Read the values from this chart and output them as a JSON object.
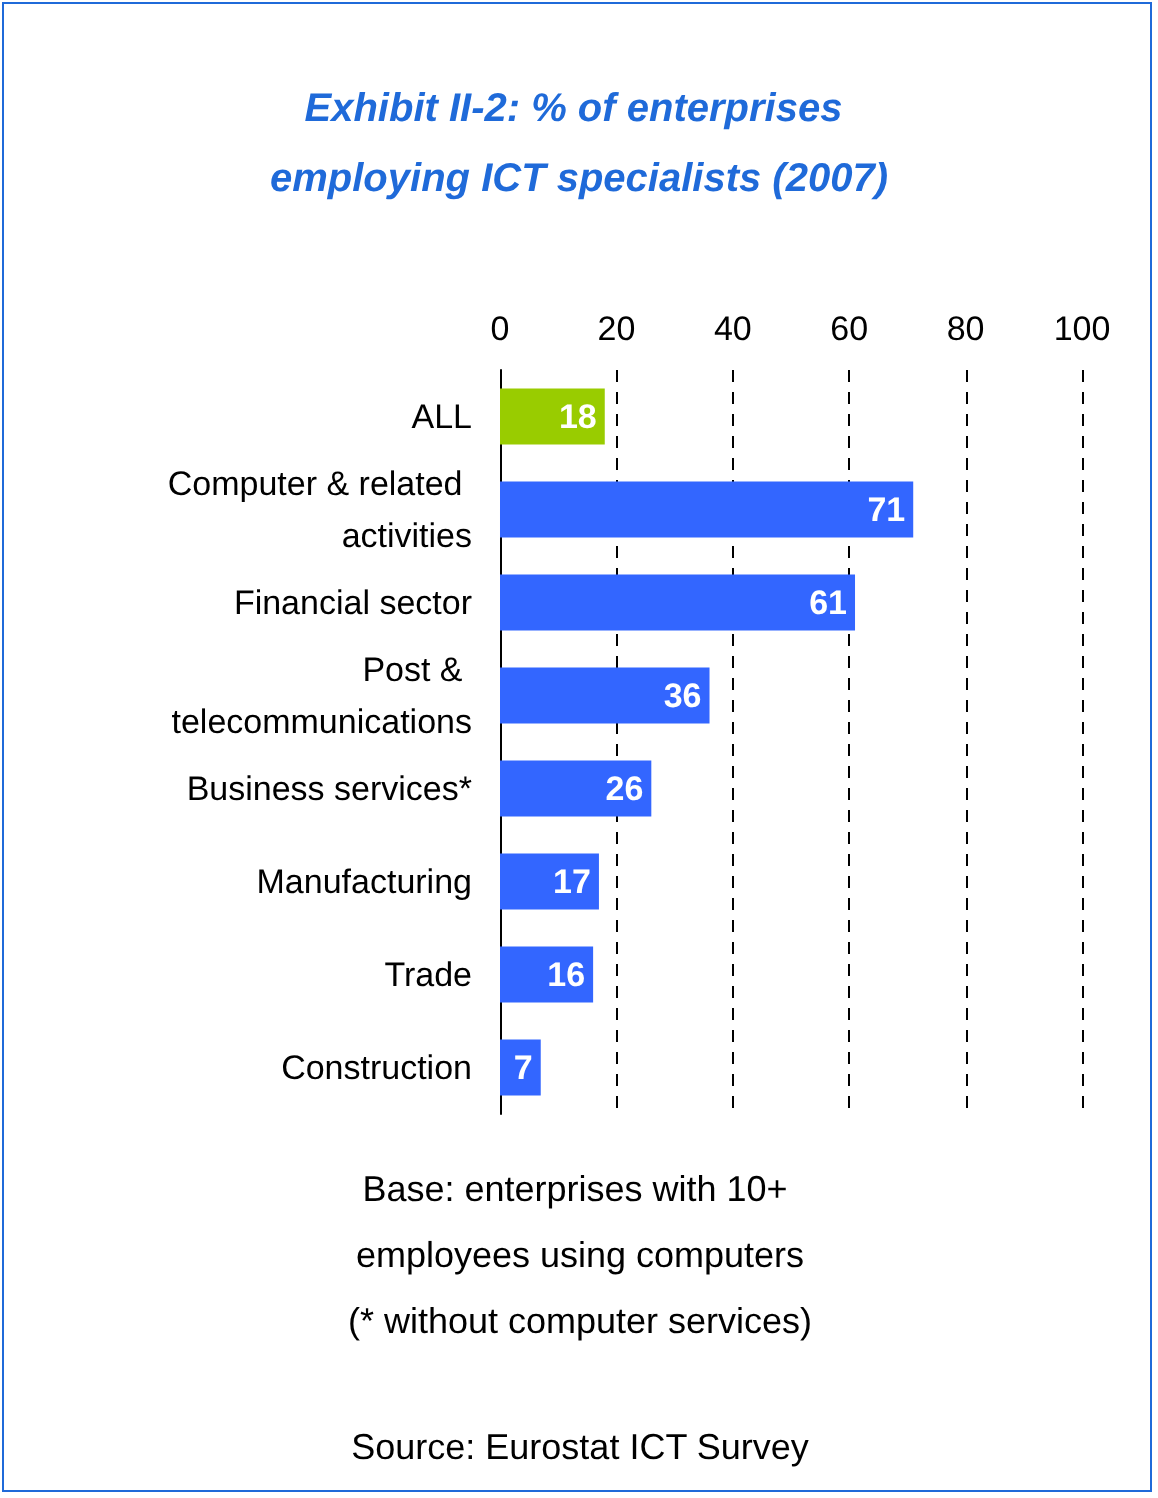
{
  "chart_data": {
    "type": "bar",
    "orientation": "horizontal",
    "title": "Exhibit II-2: % of enterprises employing ICT specialists (2007)",
    "categories": [
      "ALL",
      "Computer & related activities",
      "Financial sector",
      "Post & telecommunications",
      "Business services*",
      "Manufacturing",
      "Trade",
      "Construction"
    ],
    "values": [
      18,
      71,
      61,
      36,
      26,
      17,
      16,
      7
    ],
    "colors": [
      "#99cc00",
      "#3366ff",
      "#3366ff",
      "#3366ff",
      "#3366ff",
      "#3366ff",
      "#3366ff",
      "#3366ff"
    ],
    "xlim": [
      0,
      100
    ],
    "xticks": [
      0,
      20,
      40,
      60,
      80,
      100
    ],
    "grid": "x",
    "data_labels": true,
    "annotations": [
      "Base: enterprises with 10+ employees using computers",
      "(* without computer services)",
      "Source: Eurostat ICT Survey"
    ]
  }
}
